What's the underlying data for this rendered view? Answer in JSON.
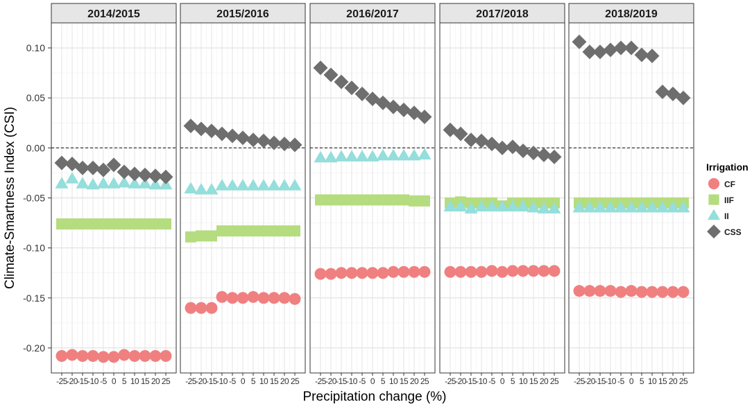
{
  "chart_data": {
    "type": "scatter",
    "layout": "faceted",
    "ylabel": "Climate-Smartness Index (CSI)",
    "xlabel": "Precipitation change (%)",
    "x": [
      -25,
      -20,
      -15,
      -10,
      -5,
      0,
      5,
      10,
      15,
      20,
      25
    ],
    "x_tick_labels": [
      "-25",
      "-20",
      "-15",
      "-10",
      "-5",
      "0",
      "5",
      "10",
      "15",
      "20",
      "25"
    ],
    "y_ticks": [
      0.1,
      0.05,
      0.0,
      -0.05,
      -0.1,
      -0.15,
      -0.2
    ],
    "y_tick_labels": [
      "0.10",
      "0.05",
      "0.00",
      "-0.05",
      "-0.10",
      "-0.15",
      "-0.20"
    ],
    "ylim": [
      -0.225,
      0.125
    ],
    "xlim": [
      -28,
      28
    ],
    "grid": true,
    "reference_line": {
      "y": 0,
      "style": "dashed"
    },
    "legend": {
      "title": "Irrigation",
      "position": "right",
      "entries": [
        {
          "name": "CF",
          "color": "#F08080",
          "shape": "circle"
        },
        {
          "name": "IIF",
          "color": "#B5DC7E",
          "shape": "square"
        },
        {
          "name": "II",
          "color": "#94DEDB",
          "shape": "triangle"
        },
        {
          "name": "CSS",
          "color": "#6E6E6E",
          "shape": "diamond"
        }
      ]
    },
    "panels": [
      {
        "title": "2014/2015",
        "series": [
          {
            "name": "CF",
            "values": [
              -0.208,
              -0.207,
              -0.208,
              -0.208,
              -0.209,
              -0.209,
              -0.207,
              -0.208,
              -0.208,
              -0.208,
              -0.208
            ]
          },
          {
            "name": "IIF",
            "values": [
              -0.076,
              -0.076,
              -0.076,
              -0.076,
              -0.076,
              -0.076,
              -0.076,
              -0.076,
              -0.076,
              -0.076,
              -0.076
            ]
          },
          {
            "name": "II",
            "values": [
              -0.036,
              -0.031,
              -0.036,
              -0.037,
              -0.036,
              -0.036,
              -0.035,
              -0.036,
              -0.036,
              -0.037,
              -0.037
            ]
          },
          {
            "name": "CSS",
            "values": [
              -0.015,
              -0.016,
              -0.02,
              -0.02,
              -0.022,
              -0.017,
              -0.024,
              -0.026,
              -0.027,
              -0.028,
              -0.029
            ]
          }
        ]
      },
      {
        "title": "2015/2016",
        "series": [
          {
            "name": "CF",
            "values": [
              -0.16,
              -0.16,
              -0.16,
              -0.149,
              -0.15,
              -0.15,
              -0.149,
              -0.15,
              -0.15,
              -0.15,
              -0.151
            ]
          },
          {
            "name": "IIF",
            "values": [
              -0.089,
              -0.088,
              -0.088,
              -0.083,
              -0.083,
              -0.083,
              -0.083,
              -0.083,
              -0.083,
              -0.083,
              -0.083
            ]
          },
          {
            "name": "II",
            "values": [
              -0.041,
              -0.042,
              -0.042,
              -0.038,
              -0.038,
              -0.038,
              -0.038,
              -0.038,
              -0.038,
              -0.038,
              -0.038
            ]
          },
          {
            "name": "CSS",
            "values": [
              0.022,
              0.019,
              0.017,
              0.014,
              0.012,
              0.01,
              0.008,
              0.007,
              0.005,
              0.004,
              0.003
            ]
          }
        ]
      },
      {
        "title": "2016/2017",
        "series": [
          {
            "name": "CF",
            "values": [
              -0.126,
              -0.126,
              -0.125,
              -0.125,
              -0.125,
              -0.125,
              -0.125,
              -0.124,
              -0.124,
              -0.124,
              -0.124
            ]
          },
          {
            "name": "IIF",
            "values": [
              -0.052,
              -0.052,
              -0.052,
              -0.052,
              -0.052,
              -0.052,
              -0.052,
              -0.052,
              -0.052,
              -0.053,
              -0.053
            ]
          },
          {
            "name": "II",
            "values": [
              -0.01,
              -0.01,
              -0.009,
              -0.009,
              -0.009,
              -0.009,
              -0.008,
              -0.008,
              -0.008,
              -0.008,
              -0.007
            ]
          },
          {
            "name": "CSS",
            "values": [
              0.08,
              0.073,
              0.066,
              0.06,
              0.054,
              0.049,
              0.045,
              0.041,
              0.038,
              0.035,
              0.031
            ]
          }
        ]
      },
      {
        "title": "2017/2018",
        "series": [
          {
            "name": "CF",
            "values": [
              -0.124,
              -0.124,
              -0.124,
              -0.124,
              -0.123,
              -0.124,
              -0.123,
              -0.123,
              -0.123,
              -0.123,
              -0.123
            ]
          },
          {
            "name": "IIF",
            "values": [
              -0.055,
              -0.054,
              -0.055,
              -0.055,
              -0.055,
              -0.058,
              -0.055,
              -0.055,
              -0.055,
              -0.055,
              -0.055
            ]
          },
          {
            "name": "II",
            "values": [
              -0.059,
              -0.059,
              -0.061,
              -0.059,
              -0.059,
              -0.059,
              -0.059,
              -0.059,
              -0.06,
              -0.061,
              -0.061
            ]
          },
          {
            "name": "CSS",
            "values": [
              0.018,
              0.014,
              0.008,
              0.007,
              0.004,
              0.0,
              0.001,
              -0.003,
              -0.005,
              -0.007,
              -0.009
            ]
          }
        ]
      },
      {
        "title": "2018/2019",
        "series": [
          {
            "name": "CF",
            "values": [
              -0.143,
              -0.143,
              -0.143,
              -0.143,
              -0.144,
              -0.143,
              -0.144,
              -0.144,
              -0.144,
              -0.144,
              -0.144
            ]
          },
          {
            "name": "IIF",
            "values": [
              -0.055,
              -0.055,
              -0.055,
              -0.055,
              -0.055,
              -0.055,
              -0.055,
              -0.055,
              -0.055,
              -0.055,
              -0.055
            ]
          },
          {
            "name": "II",
            "values": [
              -0.06,
              -0.06,
              -0.06,
              -0.06,
              -0.06,
              -0.06,
              -0.06,
              -0.06,
              -0.06,
              -0.06,
              -0.06
            ]
          },
          {
            "name": "CSS",
            "values": [
              0.106,
              0.096,
              0.096,
              0.098,
              0.1,
              0.1,
              0.093,
              0.092,
              0.056,
              0.054,
              0.05
            ]
          }
        ]
      }
    ]
  }
}
